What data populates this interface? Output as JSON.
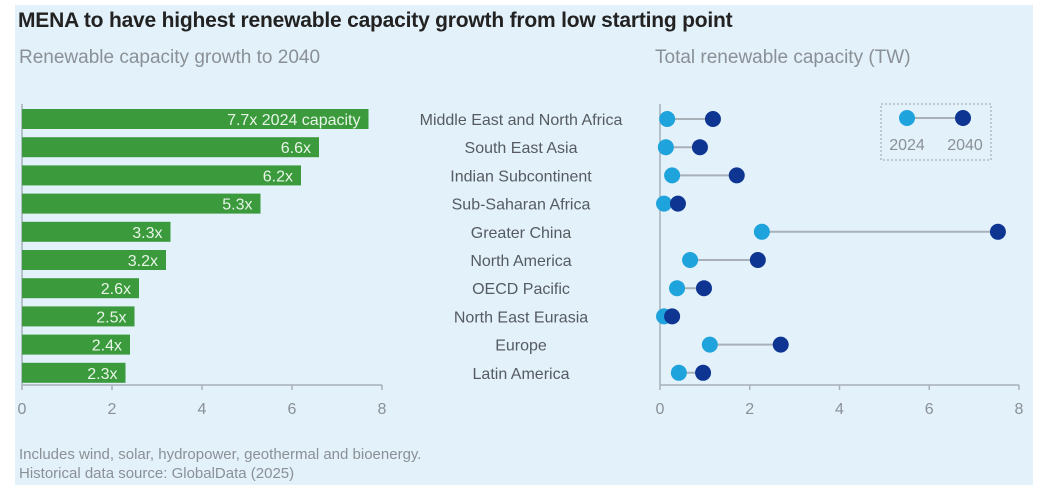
{
  "title": "MENA to have highest renewable capacity growth from low starting point",
  "notes": [
    "Includes wind, solar, hydropower, geothermal and bioenergy.",
    "Historical data source: GlobalData (2025)"
  ],
  "colors": {
    "background": "#E3F1FA",
    "bar": "#3A9A3C",
    "dot_2024": "#1FA3DC",
    "dot_2040": "#0E3592",
    "connector": "#A9B1B8",
    "axis": "#A8B0B8"
  },
  "chart_data": [
    {
      "type": "bar",
      "orientation": "horizontal",
      "title": "Renewable capacity growth to 2040",
      "categories": [
        "Middle East and North Africa",
        "South East Asia",
        "Indian Subcontinent",
        "Sub-Saharan Africa",
        "Greater China",
        "North America",
        "OECD Pacific",
        "North East Eurasia",
        "Europe",
        "Latin America"
      ],
      "values": [
        7.7,
        6.6,
        6.2,
        5.3,
        3.3,
        3.2,
        2.6,
        2.5,
        2.4,
        2.3
      ],
      "data_labels": [
        "7.7x 2024 capacity",
        "6.6x",
        "6.2x",
        "5.3x",
        "3.3x",
        "3.2x",
        "2.6x",
        "2.5x",
        "2.4x",
        "2.3x"
      ],
      "xlabel": "",
      "ylabel": "",
      "xlim": [
        0,
        8
      ],
      "xticks": [
        0,
        2,
        4,
        6,
        8
      ],
      "grid": false
    },
    {
      "type": "scatter",
      "subtype": "dumbbell",
      "title": "Total renewable capacity (TW)",
      "categories": [
        "Middle East and North Africa",
        "South East Asia",
        "Indian Subcontinent",
        "Sub-Saharan Africa",
        "Greater China",
        "North America",
        "OECD Pacific",
        "North East Eurasia",
        "Europe",
        "Latin America"
      ],
      "series": [
        {
          "name": "2024",
          "values": [
            0.16,
            0.13,
            0.27,
            0.09,
            2.27,
            0.67,
            0.38,
            0.09,
            1.11,
            0.42
          ]
        },
        {
          "name": "2040",
          "values": [
            1.18,
            0.89,
            1.71,
            0.4,
            7.53,
            2.18,
            0.98,
            0.27,
            2.69,
            0.96
          ]
        }
      ],
      "xlabel": "",
      "ylabel": "",
      "xlim": [
        0,
        8
      ],
      "xticks": [
        0,
        2,
        4,
        6,
        8
      ],
      "legend": {
        "position": "top-right",
        "entries": [
          "2024",
          "2040"
        ]
      },
      "grid": false
    }
  ]
}
